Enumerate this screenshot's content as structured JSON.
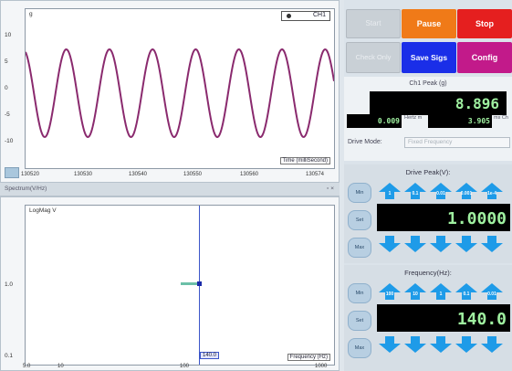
{
  "time_plot": {
    "title": "g",
    "legend": "CH1",
    "y_ticks": [
      "10",
      "5",
      "0",
      "-5",
      "-10"
    ],
    "x_ticks": [
      "130520",
      "130530",
      "130540",
      "130550",
      "130560",
      "130574"
    ],
    "x_label": "Time (milliSecond)",
    "wave_color": "#8a2a6e"
  },
  "splitter": {
    "label": "Spectrum(V/Hz)",
    "controls": "▫ ×"
  },
  "freq_plot": {
    "title": "LogMag V",
    "y_ticks": [
      "1.0",
      "0.1"
    ],
    "x_ticks": [
      "5.0",
      "10",
      "100",
      "1000"
    ],
    "x_label": "Frequency (Hz)",
    "cursor_tag": "140.0",
    "cursor_color": "#3b55c8"
  },
  "buttons": {
    "start": "Start",
    "pause": "Pause",
    "stop": "Stop",
    "check_only": "Check Only",
    "save_sigs": "Save Sigs",
    "config": "Config"
  },
  "peak": {
    "label": "Ch1 Peak (g)",
    "value": "8.896",
    "min_value": "0.009",
    "min_unit": "Hertz m",
    "max_value": "3.905",
    "max_unit": "ms Ch",
    "drive_mode_label": "Drive Mode:",
    "drive_mode_value": "Fixed Frequency"
  },
  "drive_peak": {
    "title": "Drive Peak(V):",
    "value": "1.0000",
    "side_buttons": [
      "Min",
      "Set",
      "Max"
    ],
    "step_labels": [
      "1",
      "0.1",
      "0.01",
      "0.001",
      "1e-4"
    ]
  },
  "frequency": {
    "title": "Frequency(Hz):",
    "value": "140.0",
    "side_buttons": [
      "Min",
      "Set",
      "Max"
    ],
    "step_labels": [
      "100",
      "10",
      "1",
      "0.1",
      "0.01"
    ]
  }
}
